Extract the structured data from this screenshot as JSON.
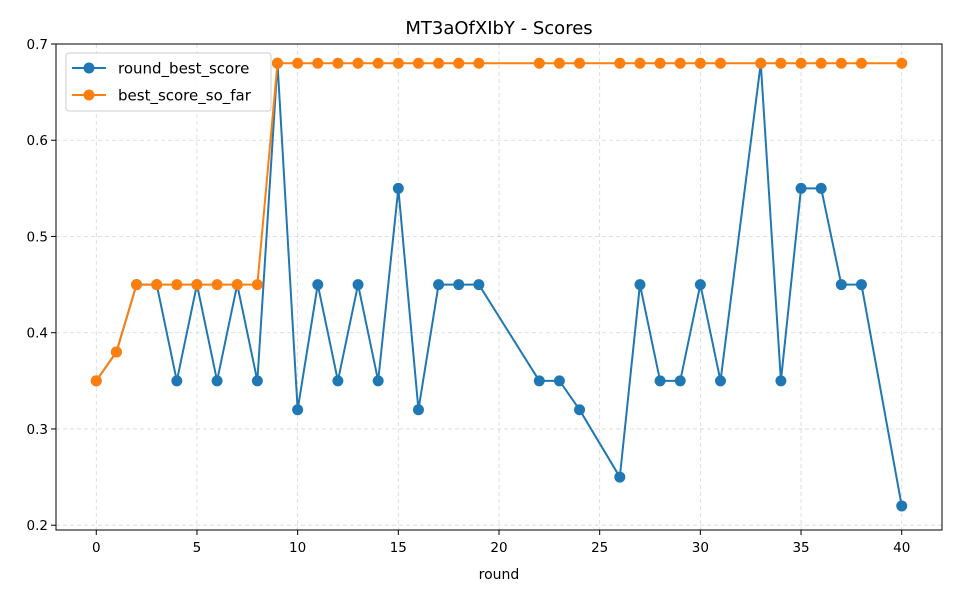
{
  "chart_data": {
    "type": "line",
    "title": "MT3aOfXIbY - Scores",
    "xlabel": "round",
    "ylabel": "",
    "xlim": [
      -2,
      42
    ],
    "ylim": [
      0.195,
      0.7
    ],
    "xticks": [
      0,
      5,
      10,
      15,
      20,
      25,
      30,
      35,
      40
    ],
    "xtick_labels": [
      "0",
      "5",
      "10",
      "15",
      "20",
      "25",
      "30",
      "35",
      "40"
    ],
    "yticks": [
      0.2,
      0.3,
      0.4,
      0.5,
      0.6,
      0.7
    ],
    "ytick_labels": [
      "0.2",
      "0.3",
      "0.4",
      "0.5",
      "0.6",
      "0.7"
    ],
    "grid": true,
    "legend_position": "top-left",
    "series": [
      {
        "name": "round_best_score",
        "color": "#1f77b4",
        "marker": "circle",
        "x": [
          0,
          1,
          2,
          3,
          4,
          5,
          6,
          7,
          8,
          9,
          10,
          11,
          12,
          13,
          14,
          15,
          16,
          17,
          18,
          19,
          22,
          23,
          24,
          26,
          27,
          28,
          29,
          30,
          31,
          33,
          34,
          35,
          36,
          37,
          38,
          40
        ],
        "y": [
          0.35,
          0.38,
          0.45,
          0.45,
          0.35,
          0.45,
          0.35,
          0.45,
          0.35,
          0.68,
          0.32,
          0.45,
          0.35,
          0.45,
          0.35,
          0.55,
          0.32,
          0.45,
          0.45,
          0.45,
          0.35,
          0.35,
          0.32,
          0.25,
          0.45,
          0.35,
          0.35,
          0.45,
          0.35,
          0.68,
          0.35,
          0.55,
          0.55,
          0.45,
          0.45,
          0.22
        ]
      },
      {
        "name": "best_score_so_far",
        "color": "#ff7f0e",
        "marker": "circle",
        "x": [
          0,
          1,
          2,
          3,
          4,
          5,
          6,
          7,
          8,
          9,
          10,
          11,
          12,
          13,
          14,
          15,
          16,
          17,
          18,
          19,
          22,
          23,
          24,
          26,
          27,
          28,
          29,
          30,
          31,
          33,
          34,
          35,
          36,
          37,
          38,
          40
        ],
        "y": [
          0.35,
          0.38,
          0.45,
          0.45,
          0.45,
          0.45,
          0.45,
          0.45,
          0.45,
          0.68,
          0.68,
          0.68,
          0.68,
          0.68,
          0.68,
          0.68,
          0.68,
          0.68,
          0.68,
          0.68,
          0.68,
          0.68,
          0.68,
          0.68,
          0.68,
          0.68,
          0.68,
          0.68,
          0.68,
          0.68,
          0.68,
          0.68,
          0.68,
          0.68,
          0.68,
          0.68
        ]
      }
    ]
  }
}
